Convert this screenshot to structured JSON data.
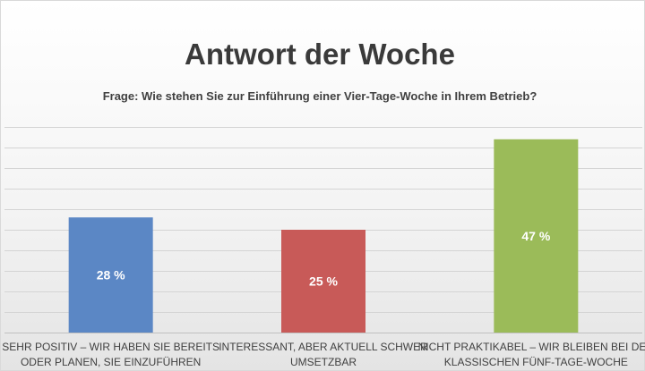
{
  "chart_data": {
    "type": "bar",
    "title": "Antwort der Woche",
    "subtitle": "Frage: Wie stehen Sie zur Einführung einer Vier-Tage-Woche in Ihrem Betrieb?",
    "categories": [
      [
        "SEHR POSITIV – WIR HABEN SIE BEREITS",
        "ODER PLANEN, SIE EINZUFÜHREN"
      ],
      [
        "INTERESSANT, ABER AKTUELL SCHWER",
        "UMSETZBAR"
      ],
      [
        "NICHT PRAKTIKABEL – WIR BLEIBEN BEI DER",
        "KLASSISCHEN FÜNF-TAGE-WOCHE"
      ]
    ],
    "values": [
      28,
      25,
      47
    ],
    "data_labels": [
      "28 %",
      "25 %",
      "47 %"
    ],
    "colors": [
      "#5b87c5",
      "#c85a58",
      "#9bbb59"
    ],
    "ylim": [
      0,
      50
    ],
    "grid": true,
    "legend": "none",
    "xlabel": "",
    "ylabel": ""
  }
}
